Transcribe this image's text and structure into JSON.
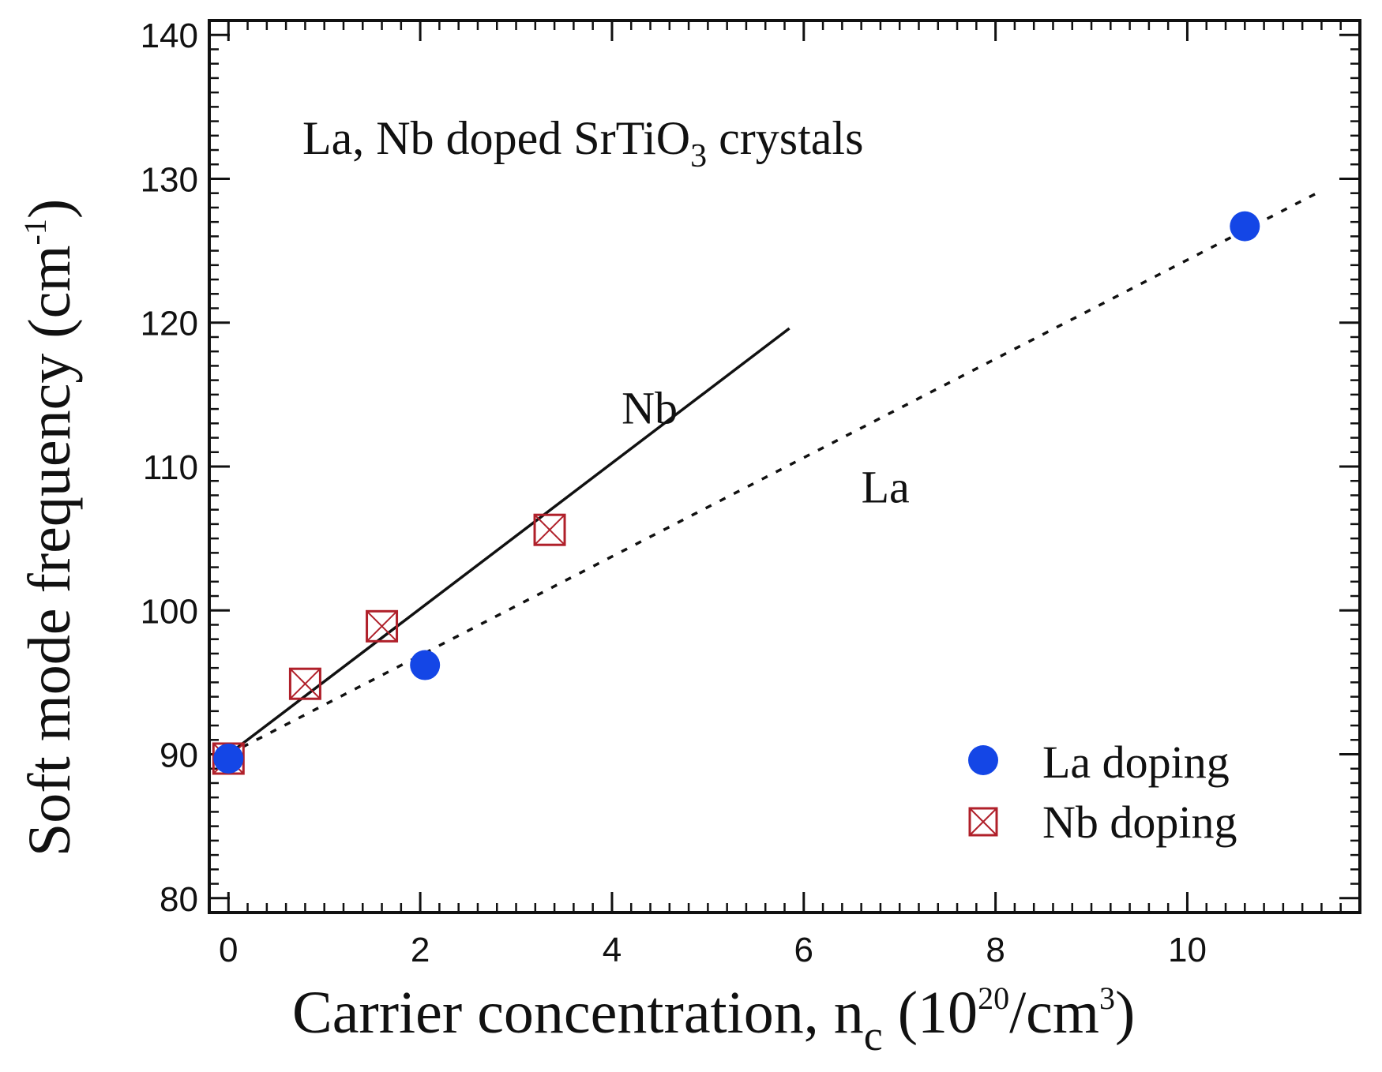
{
  "chart_data": {
    "type": "scatter",
    "annotation": {
      "main": "La, Nb doped SrTiO",
      "sub": "3",
      "tail": " crystals"
    },
    "xlabel": {
      "main": "Carrier concentration, n",
      "sub": "c",
      "open": " (10",
      "sup1": "20",
      "mid": "/cm",
      "sup2": "3",
      "close": ")"
    },
    "ylabel": {
      "main": "Soft mode frequency (cm",
      "sup": "-1",
      "close": ")"
    },
    "xlim": [
      -0.2,
      11.8
    ],
    "ylim": [
      79,
      141
    ],
    "x_ticks": [
      0,
      2,
      4,
      6,
      8,
      10
    ],
    "y_ticks": [
      80,
      90,
      100,
      110,
      120,
      130,
      140
    ],
    "x_minor_step": 0.2,
    "y_minor_step": 1,
    "series": [
      {
        "name": "La doping",
        "marker": "filled-circle",
        "color": "#1446e6",
        "x": [
          0.0,
          2.05,
          10.6
        ],
        "y": [
          89.7,
          96.2,
          126.7
        ]
      },
      {
        "name": "Nb doping",
        "marker": "boxed-x",
        "color": "#b0202a",
        "x": [
          0.0,
          0.8,
          1.6,
          3.35
        ],
        "y": [
          89.7,
          94.9,
          98.9,
          105.6
        ]
      }
    ],
    "fit_lines": [
      {
        "name": "Nb",
        "label": "Nb",
        "style": "solid",
        "x": [
          0.0,
          5.85
        ],
        "y": [
          90.0,
          119.6
        ],
        "label_at": [
          4.1,
          113.0
        ]
      },
      {
        "name": "La",
        "label": "La",
        "style": "dotted",
        "x": [
          0.0,
          11.35
        ],
        "y": [
          90.0,
          129.0
        ],
        "label_at": [
          6.6,
          107.5
        ]
      }
    ],
    "legend": {
      "position": "bottom-right",
      "entries": [
        "La doping",
        "Nb doping"
      ]
    }
  }
}
